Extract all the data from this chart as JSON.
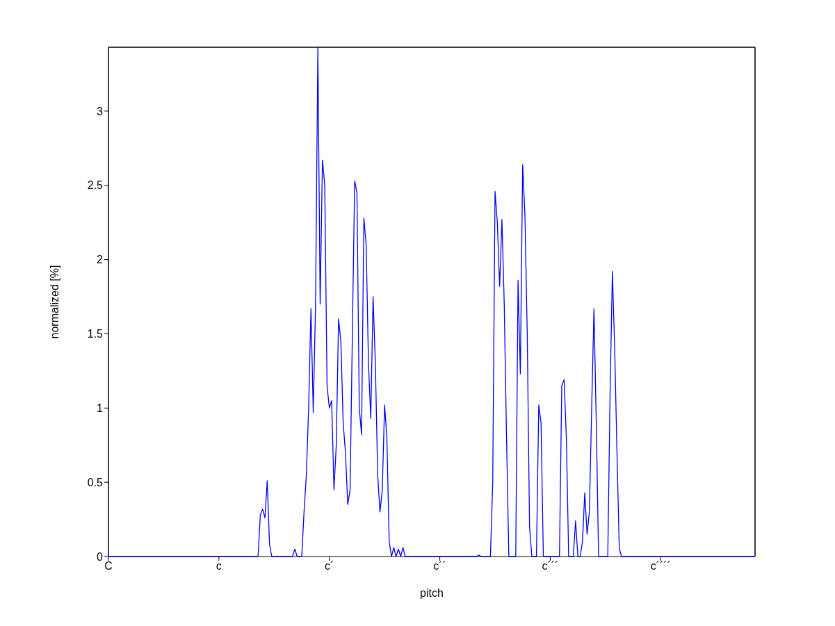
{
  "chart_data": {
    "type": "line",
    "xlabel": "pitch",
    "ylabel": "normalized [%]",
    "categories": [
      "C",
      null,
      null,
      null,
      null,
      null,
      null,
      null,
      null,
      null,
      null,
      null,
      null,
      null,
      null,
      null,
      null,
      null,
      null,
      null,
      null,
      null,
      null,
      null,
      null,
      null,
      null,
      null,
      null,
      null,
      null,
      null,
      null,
      null,
      null,
      null,
      null,
      null,
      null,
      null,
      null,
      null,
      null,
      null,
      null,
      null,
      null,
      null,
      "c",
      null,
      null,
      null,
      null,
      null,
      null,
      null,
      null,
      null,
      null,
      null,
      null,
      null,
      null,
      null,
      null,
      null,
      null,
      null,
      null,
      null,
      null,
      null,
      null,
      null,
      null,
      null,
      null,
      null,
      null,
      null,
      null,
      null,
      null,
      null,
      null,
      null,
      null,
      null,
      null,
      null,
      null,
      null,
      null,
      null,
      null,
      null,
      "c´",
      null,
      null,
      null,
      null,
      null,
      null,
      null,
      null,
      null,
      null,
      null,
      null,
      null,
      null,
      null,
      null,
      null,
      null,
      null,
      null,
      null,
      null,
      null,
      null,
      null,
      null,
      null,
      null,
      null,
      null,
      null,
      null,
      null,
      null,
      null,
      null,
      null,
      null,
      null,
      null,
      null,
      null,
      null,
      null,
      null,
      null,
      null,
      "c´´",
      null,
      null,
      null,
      null,
      null,
      null,
      null,
      null,
      null,
      null,
      null,
      null,
      null,
      null,
      null,
      null,
      null,
      null,
      null,
      null,
      null,
      null,
      null,
      null,
      null,
      null,
      null,
      null,
      null,
      null,
      null,
      null,
      null,
      null,
      null,
      null,
      null,
      null,
      null,
      null,
      null,
      null,
      null,
      null,
      null,
      null,
      null,
      "c´´´",
      null,
      null,
      null,
      null,
      null,
      null,
      null,
      null,
      null,
      null,
      null,
      null,
      null,
      null,
      null,
      null,
      null,
      null,
      null,
      null,
      null,
      null,
      null,
      null,
      null,
      null,
      null,
      null,
      null,
      null,
      null,
      null,
      null,
      null,
      null,
      null,
      null,
      null,
      null,
      null,
      null,
      null,
      null,
      null,
      null,
      null,
      null,
      "c´´´´",
      null,
      null,
      null,
      null,
      null,
      null,
      null,
      null,
      null,
      null,
      null,
      null,
      null,
      null,
      null,
      null,
      null,
      null,
      null,
      null,
      null,
      null,
      null,
      null,
      null,
      null,
      null,
      null,
      null,
      null,
      null,
      null,
      null,
      null,
      null,
      null,
      null,
      null,
      null,
      null,
      null
    ],
    "series": [
      {
        "color": "#0000ff",
        "values": [
          0,
          0,
          0,
          0,
          0,
          0,
          0,
          0,
          0,
          0,
          0,
          0,
          0,
          0,
          0,
          0,
          0,
          0,
          0,
          0,
          0,
          0,
          0,
          0,
          0,
          0,
          0,
          0,
          0,
          0,
          0,
          0,
          0,
          0,
          0,
          0,
          0,
          0,
          0,
          0,
          0,
          0,
          0,
          0,
          0,
          0,
          0,
          0,
          0,
          0,
          0,
          0,
          0,
          0,
          0,
          0,
          0,
          0,
          0,
          0,
          0,
          0,
          0,
          0,
          0,
          0,
          0.28,
          0.32,
          0.26,
          0.51,
          0.08,
          0,
          0,
          0,
          0,
          0,
          0,
          0,
          0,
          0,
          0,
          0.05,
          0,
          0,
          0,
          0.3,
          0.55,
          1.0,
          1.67,
          0.97,
          1.7,
          3.43,
          1.7,
          2.67,
          2.5,
          1.15,
          1.0,
          1.05,
          0.45,
          0.75,
          1.6,
          1.45,
          0.9,
          0.7,
          0.35,
          0.45,
          1.5,
          2.53,
          2.45,
          1.0,
          0.82,
          2.28,
          2.1,
          1.3,
          0.93,
          1.75,
          1.3,
          0.55,
          0.3,
          0.45,
          1.02,
          0.8,
          0.1,
          0,
          0.06,
          0,
          0.05,
          0,
          0.06,
          0,
          0,
          0,
          0,
          0,
          0,
          0,
          0,
          0,
          0,
          0,
          0,
          0,
          0,
          0,
          0,
          0,
          0,
          0,
          0,
          0,
          0,
          0,
          0,
          0,
          0,
          0,
          0,
          0,
          0,
          0,
          0,
          0.01,
          0,
          0,
          0,
          0,
          0,
          0.5,
          2.46,
          2.25,
          1.82,
          2.27,
          1.7,
          0.8,
          0,
          0,
          0,
          0,
          1.86,
          1.23,
          2.64,
          2.3,
          1.5,
          0.2,
          0,
          0,
          0,
          1.02,
          0.9,
          0,
          0,
          0,
          0,
          0,
          0,
          0,
          0,
          1.15,
          1.19,
          0.8,
          0,
          0,
          0,
          0.24,
          0,
          0,
          0.1,
          0.43,
          0.15,
          0.3,
          1.0,
          1.67,
          0.9,
          0,
          0,
          0,
          0,
          0,
          1.1,
          1.92,
          1.4,
          0.7,
          0.05,
          0,
          0,
          0,
          0,
          0,
          0,
          0,
          0,
          0,
          0,
          0,
          0,
          0,
          0,
          0,
          0,
          0,
          0,
          0,
          0,
          0,
          0,
          0,
          0,
          0,
          0,
          0,
          0,
          0,
          0,
          0,
          0,
          0,
          0,
          0,
          0,
          0,
          0,
          0,
          0,
          0,
          0,
          0,
          0,
          0,
          0,
          0,
          0,
          0,
          0,
          0,
          0,
          0,
          0,
          0,
          0,
          0,
          0,
          0
        ]
      }
    ],
    "ylim": [
      0,
      3.43
    ],
    "yticks": [
      0,
      0.5,
      1,
      1.5,
      2,
      2.5,
      3
    ],
    "grid": false
  }
}
